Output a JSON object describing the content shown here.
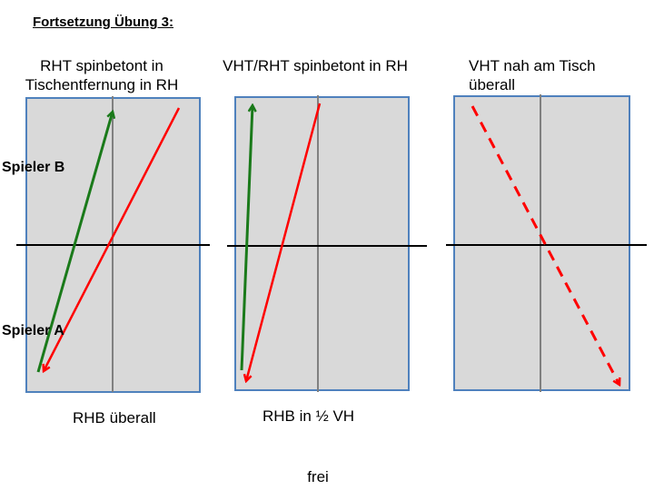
{
  "heading": "Fortsetzung Übung 3:",
  "players": {
    "b": "Spieler B",
    "a": "Spieler A"
  },
  "diagrams": [
    {
      "title": "RHT spinbetont in\nTischentfernung in RH",
      "caption": "RHB überall"
    },
    {
      "title": "VHT/RHT spinbetont in RH",
      "caption": "RHB in ½ VH"
    },
    {
      "title": "VHT nah am Tisch\nüberall",
      "caption": ""
    }
  ],
  "footer": "frei",
  "colors": {
    "table_fill": "#d9d9d9",
    "table_border": "#4f81bd",
    "center_line": "#808080",
    "net": "#000000",
    "green_arrow": "#1a7a1a",
    "red_arrow": "#ff0000"
  }
}
